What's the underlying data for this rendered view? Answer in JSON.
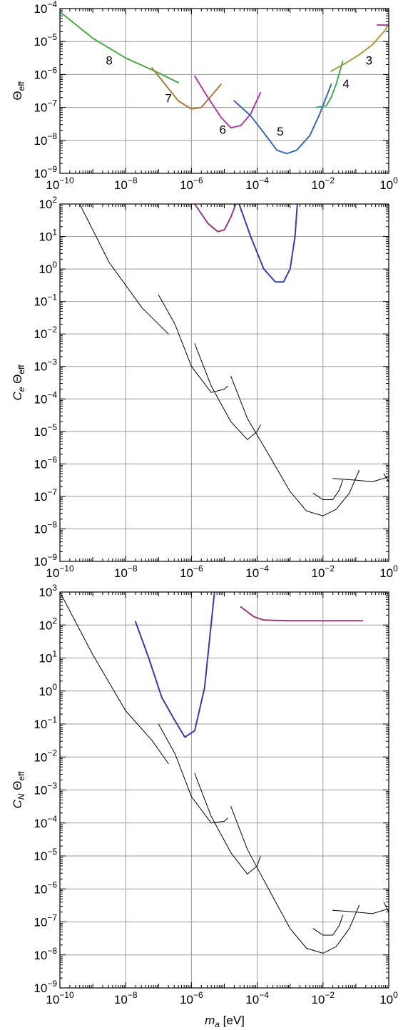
{
  "xlabel_main": "m",
  "xlabel_sub": "a",
  "xlabel_unit": " [eV]",
  "colors": {
    "c3": "#b03a9a",
    "c3b": "#a89a3a",
    "c4": "#3fae5a",
    "c5": "#3a66b8",
    "c6": "#b03aa8",
    "c7": "#a87a3a",
    "c8": "#4aa84a",
    "black": "#000000",
    "blue": "#3a3aa8",
    "purple": "#9a3a78"
  },
  "chart_data": [
    {
      "type": "line",
      "ylabel_main": "Θ",
      "ylabel_sub": "eff",
      "ylabel_prefix": "",
      "ylabel_prefix_sub": "",
      "xlim_exp": [
        -10,
        0
      ],
      "ylim_exp": [
        -9,
        -4
      ],
      "x_tick_labels": [
        {
          "exp": -10,
          "label": "10",
          "sup": "−10"
        },
        {
          "exp": -8,
          "label": "10",
          "sup": "−8"
        },
        {
          "exp": -6,
          "label": "10",
          "sup": "−6"
        },
        {
          "exp": -4,
          "label": "10",
          "sup": "−4"
        },
        {
          "exp": -2,
          "label": "10",
          "sup": "−2"
        },
        {
          "exp": 0,
          "label": "10",
          "sup": "0"
        }
      ],
      "y_tick_labels": [
        {
          "exp": -9,
          "label": "10",
          "sup": "−9"
        },
        {
          "exp": -8,
          "label": "10",
          "sup": "−8"
        },
        {
          "exp": -7,
          "label": "10",
          "sup": "−7"
        },
        {
          "exp": -6,
          "label": "10",
          "sup": "−6"
        },
        {
          "exp": -5,
          "label": "10",
          "sup": "−5"
        },
        {
          "exp": -4,
          "label": "10",
          "sup": "−4"
        }
      ],
      "series": [
        {
          "color_key": "c8",
          "points": [
            [
              -10,
              -4.1
            ],
            [
              -9.0,
              -4.9
            ],
            [
              -8.0,
              -5.5
            ],
            [
              -7.0,
              -5.95
            ],
            [
              -6.6,
              -6.15
            ],
            [
              -6.4,
              -6.25
            ]
          ]
        },
        {
          "color_key": "c7",
          "points": [
            [
              -7.2,
              -5.8
            ],
            [
              -6.8,
              -6.3
            ],
            [
              -6.4,
              -6.8
            ],
            [
              -6.0,
              -7.05
            ],
            [
              -5.7,
              -7.0
            ],
            [
              -5.4,
              -6.65
            ],
            [
              -5.1,
              -6.3
            ]
          ]
        },
        {
          "color_key": "c6",
          "points": [
            [
              -5.9,
              -6.05
            ],
            [
              -5.5,
              -6.7
            ],
            [
              -5.1,
              -7.3
            ],
            [
              -4.8,
              -7.62
            ],
            [
              -4.5,
              -7.55
            ],
            [
              -4.2,
              -7.2
            ],
            [
              -3.9,
              -6.55
            ]
          ]
        },
        {
          "color_key": "c5",
          "points": [
            [
              -4.7,
              -6.8
            ],
            [
              -4.2,
              -7.25
            ],
            [
              -3.7,
              -7.9
            ],
            [
              -3.4,
              -8.3
            ],
            [
              -3.1,
              -8.4
            ],
            [
              -2.8,
              -8.3
            ],
            [
              -2.4,
              -7.85
            ],
            [
              -2.1,
              -7.2
            ],
            [
              -1.75,
              -6.3
            ]
          ]
        },
        {
          "color_key": "c4",
          "points": [
            [
              -2.2,
              -7.0
            ],
            [
              -1.9,
              -6.95
            ],
            [
              -1.75,
              -6.7
            ],
            [
              -1.6,
              -6.3
            ],
            [
              -1.4,
              -5.6
            ]
          ]
        },
        {
          "color_key": "c3b",
          "points": [
            [
              -1.75,
              -5.9
            ],
            [
              -1.3,
              -5.65
            ],
            [
              -0.9,
              -5.4
            ],
            [
              -0.5,
              -5.1
            ],
            [
              -0.1,
              -4.65
            ],
            [
              0,
              -4.45
            ]
          ]
        },
        {
          "color_key": "c3",
          "points": [
            [
              -0.35,
              -4.5
            ],
            [
              0,
              -4.5
            ]
          ]
        }
      ],
      "curve_labels": [
        {
          "text": "8",
          "x": -8.5,
          "y": -5.7
        },
        {
          "text": "7",
          "x": -6.7,
          "y": -6.85
        },
        {
          "text": "6",
          "x": -5.05,
          "y": -7.8
        },
        {
          "text": "5",
          "x": -3.3,
          "y": -7.85
        },
        {
          "text": "4",
          "x": -1.3,
          "y": -6.4
        },
        {
          "text": "3",
          "x": -0.6,
          "y": -5.7
        }
      ]
    },
    {
      "type": "line",
      "ylabel_main": "Θ",
      "ylabel_sub": "eff",
      "ylabel_prefix": "C",
      "ylabel_prefix_sub": "e",
      "xlim_exp": [
        -10,
        0
      ],
      "ylim_exp": [
        -9,
        2
      ],
      "x_tick_labels": [
        {
          "exp": -10,
          "label": "10",
          "sup": "−10"
        },
        {
          "exp": -8,
          "label": "10",
          "sup": "−8"
        },
        {
          "exp": -6,
          "label": "10",
          "sup": "−6"
        },
        {
          "exp": -4,
          "label": "10",
          "sup": "−4"
        },
        {
          "exp": -2,
          "label": "10",
          "sup": "−2"
        },
        {
          "exp": 0,
          "label": "10",
          "sup": "0"
        }
      ],
      "y_tick_labels": [
        {
          "exp": -9,
          "label": "10",
          "sup": "−9"
        },
        {
          "exp": -8,
          "label": "10",
          "sup": "−8"
        },
        {
          "exp": -7,
          "label": "10",
          "sup": "−7"
        },
        {
          "exp": -6,
          "label": "10",
          "sup": "−6"
        },
        {
          "exp": -5,
          "label": "10",
          "sup": "−5"
        },
        {
          "exp": -4,
          "label": "10",
          "sup": "−4"
        },
        {
          "exp": -3,
          "label": "10",
          "sup": "−3"
        },
        {
          "exp": -2,
          "label": "10",
          "sup": "−2"
        },
        {
          "exp": -1,
          "label": "10",
          "sup": "−1"
        },
        {
          "exp": 0,
          "label": "10",
          "sup": "0"
        },
        {
          "exp": 1,
          "label": "10",
          "sup": "1"
        },
        {
          "exp": 2,
          "label": "10",
          "sup": "2"
        }
      ],
      "series": [
        {
          "color_key": "black",
          "width": 1,
          "points": [
            [
              -9.4,
              2
            ],
            [
              -8.5,
              0.2
            ],
            [
              -7.5,
              -1.2
            ],
            [
              -6.7,
              -2.0
            ]
          ]
        },
        {
          "color_key": "black",
          "width": 1,
          "points": [
            [
              -7.0,
              -0.8
            ],
            [
              -6.5,
              -1.7
            ],
            [
              -6.0,
              -3.0
            ],
            [
              -5.4,
              -3.8
            ],
            [
              -5.0,
              -3.7
            ],
            [
              -4.9,
              -3.6
            ]
          ]
        },
        {
          "color_key": "black",
          "width": 1,
          "points": [
            [
              -5.9,
              -2.3
            ],
            [
              -5.4,
              -3.6
            ],
            [
              -4.8,
              -4.7
            ],
            [
              -4.3,
              -5.25
            ],
            [
              -4.0,
              -5.0
            ],
            [
              -3.9,
              -4.8
            ]
          ]
        },
        {
          "color_key": "black",
          "width": 1,
          "points": [
            [
              -4.8,
              -3.3
            ],
            [
              -4.3,
              -4.6
            ],
            [
              -3.6,
              -5.8
            ],
            [
              -3.0,
              -6.85
            ],
            [
              -2.5,
              -7.45
            ],
            [
              -2.0,
              -7.6
            ],
            [
              -1.6,
              -7.4
            ],
            [
              -1.2,
              -6.9
            ],
            [
              -0.9,
              -6.2
            ]
          ]
        },
        {
          "color_key": "black",
          "width": 1,
          "points": [
            [
              -2.3,
              -6.9
            ],
            [
              -2.0,
              -7.1
            ],
            [
              -1.7,
              -7.1
            ],
            [
              -1.5,
              -6.8
            ],
            [
              -1.4,
              -6.5
            ]
          ]
        },
        {
          "color_key": "black",
          "width": 1,
          "points": [
            [
              -1.7,
              -6.45
            ],
            [
              -1.0,
              -6.5
            ],
            [
              -0.5,
              -6.55
            ],
            [
              0,
              -6.4
            ]
          ]
        },
        {
          "color_key": "black",
          "width": 1,
          "points": [
            [
              -0.15,
              -6.3
            ],
            [
              0,
              -6.55
            ]
          ]
        },
        {
          "color_key": "purple",
          "width": 2,
          "points": [
            [
              -5.9,
              2
            ],
            [
              -5.5,
              1.4
            ],
            [
              -5.2,
              1.15
            ],
            [
              -5.0,
              1.2
            ],
            [
              -4.8,
              1.6
            ],
            [
              -4.65,
              2
            ]
          ]
        },
        {
          "color_key": "blue",
          "width": 2,
          "points": [
            [
              -4.55,
              2
            ],
            [
              -4.2,
              1.0
            ],
            [
              -3.8,
              0.0
            ],
            [
              -3.45,
              -0.4
            ],
            [
              -3.2,
              -0.4
            ],
            [
              -3.0,
              0.0
            ],
            [
              -2.85,
              1.0
            ],
            [
              -2.78,
              2
            ]
          ]
        }
      ],
      "curve_labels": []
    },
    {
      "type": "line",
      "ylabel_main": "Θ",
      "ylabel_sub": "eff",
      "ylabel_prefix": "C",
      "ylabel_prefix_sub": "N",
      "xlim_exp": [
        -10,
        0
      ],
      "ylim_exp": [
        -9,
        3
      ],
      "x_tick_labels": [
        {
          "exp": -10,
          "label": "10",
          "sup": "−10"
        },
        {
          "exp": -8,
          "label": "10",
          "sup": "−8"
        },
        {
          "exp": -6,
          "label": "10",
          "sup": "−6"
        },
        {
          "exp": -4,
          "label": "10",
          "sup": "−4"
        },
        {
          "exp": -2,
          "label": "10",
          "sup": "−2"
        },
        {
          "exp": 0,
          "label": "10",
          "sup": "0"
        }
      ],
      "y_tick_labels": [
        {
          "exp": -9,
          "label": "10",
          "sup": "−9"
        },
        {
          "exp": -8,
          "label": "10",
          "sup": "−8"
        },
        {
          "exp": -7,
          "label": "10",
          "sup": "−7"
        },
        {
          "exp": -6,
          "label": "10",
          "sup": "−6"
        },
        {
          "exp": -5,
          "label": "10",
          "sup": "−5"
        },
        {
          "exp": -4,
          "label": "10",
          "sup": "−4"
        },
        {
          "exp": -3,
          "label": "10",
          "sup": "−3"
        },
        {
          "exp": -2,
          "label": "10",
          "sup": "−2"
        },
        {
          "exp": -1,
          "label": "10",
          "sup": "−1"
        },
        {
          "exp": 0,
          "label": "10",
          "sup": "0"
        },
        {
          "exp": 1,
          "label": "10",
          "sup": "1"
        },
        {
          "exp": 2,
          "label": "10",
          "sup": "2"
        },
        {
          "exp": 3,
          "label": "10",
          "sup": "3"
        }
      ],
      "series": [
        {
          "color_key": "black",
          "width": 1,
          "points": [
            [
              -10,
              3
            ],
            [
              -9.0,
              1.1
            ],
            [
              -8.0,
              -0.6
            ],
            [
              -7.2,
              -1.5
            ],
            [
              -6.7,
              -2.2
            ]
          ]
        },
        {
          "color_key": "black",
          "width": 1,
          "points": [
            [
              -7.0,
              -1.0
            ],
            [
              -6.5,
              -1.9
            ],
            [
              -6.0,
              -3.2
            ],
            [
              -5.4,
              -4.0
            ],
            [
              -5.0,
              -3.95
            ],
            [
              -4.9,
              -3.85
            ]
          ]
        },
        {
          "color_key": "black",
          "width": 1,
          "points": [
            [
              -5.9,
              -2.5
            ],
            [
              -5.4,
              -3.8
            ],
            [
              -4.8,
              -4.9
            ],
            [
              -4.3,
              -5.55
            ],
            [
              -4.0,
              -5.3
            ],
            [
              -3.9,
              -5.0
            ]
          ]
        },
        {
          "color_key": "black",
          "width": 1,
          "points": [
            [
              -4.8,
              -3.5
            ],
            [
              -4.3,
              -4.8
            ],
            [
              -3.6,
              -6.1
            ],
            [
              -3.0,
              -7.2
            ],
            [
              -2.5,
              -7.8
            ],
            [
              -2.0,
              -7.95
            ],
            [
              -1.6,
              -7.75
            ],
            [
              -1.2,
              -7.2
            ],
            [
              -0.9,
              -6.5
            ]
          ]
        },
        {
          "color_key": "black",
          "width": 1,
          "points": [
            [
              -2.3,
              -7.2
            ],
            [
              -2.0,
              -7.4
            ],
            [
              -1.7,
              -7.4
            ],
            [
              -1.5,
              -7.1
            ],
            [
              -1.4,
              -6.8
            ]
          ]
        },
        {
          "color_key": "black",
          "width": 1,
          "points": [
            [
              -1.7,
              -6.65
            ],
            [
              -1.0,
              -6.7
            ],
            [
              -0.5,
              -6.75
            ],
            [
              0,
              -6.6
            ]
          ]
        },
        {
          "color_key": "black",
          "width": 1,
          "points": [
            [
              -0.15,
              -6.4
            ],
            [
              0,
              -6.7
            ]
          ]
        },
        {
          "color_key": "blue",
          "width": 2,
          "points": [
            [
              -7.7,
              2.1
            ],
            [
              -7.3,
              1.0
            ],
            [
              -6.9,
              -0.2
            ],
            [
              -6.5,
              -0.9
            ],
            [
              -6.2,
              -1.4
            ],
            [
              -5.9,
              -1.2
            ],
            [
              -5.6,
              0.1
            ],
            [
              -5.3,
              3
            ]
          ]
        },
        {
          "color_key": "purple",
          "width": 2,
          "points": [
            [
              -4.5,
              2.55
            ],
            [
              -4.1,
              2.25
            ],
            [
              -3.8,
              2.15
            ],
            [
              -3.0,
              2.13
            ],
            [
              -2.0,
              2.13
            ],
            [
              -0.8,
              2.13
            ]
          ]
        }
      ],
      "curve_labels": []
    }
  ]
}
